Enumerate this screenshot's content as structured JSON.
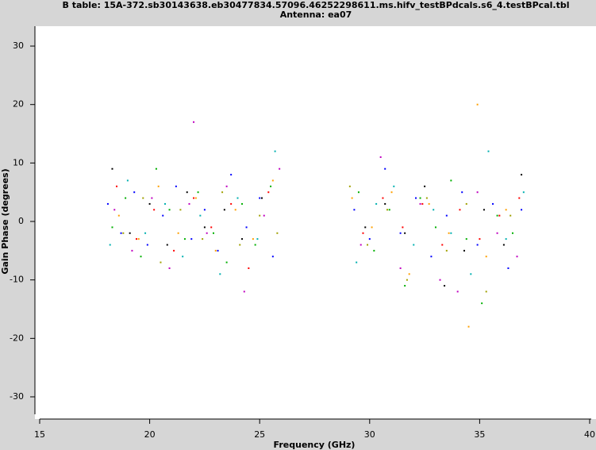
{
  "chart_data": {
    "type": "scatter",
    "title": "B table: 15A-372.sb30143638.eb30477834.57096.46252298611.ms.hifv_testBPdcals.s6_4.testBPcal.tbl",
    "subtitle": "Antenna: ea07",
    "xlabel": "Frequency (GHz)",
    "ylabel": "Gain Phase (degrees)",
    "xlim": [
      15,
      40
    ],
    "xticks": [
      15,
      20,
      25,
      30,
      35,
      40
    ],
    "ylim": [
      -33.8,
      33.4
    ],
    "yticks": [
      -30,
      -20,
      -10,
      0,
      10,
      20,
      30
    ],
    "series": [
      {
        "color": "#0000ff",
        "x": [
          18.1,
          18.7,
          19.3,
          19.9,
          20.6,
          21.2,
          21.9,
          22.5,
          23.1,
          23.7,
          24.4,
          25.0,
          25.6,
          29.3,
          30.0,
          30.7,
          31.4,
          32.1,
          32.8,
          33.5,
          34.2,
          34.9,
          35.6,
          36.3,
          36.9
        ],
        "values": [
          3,
          -2,
          5,
          -4,
          1,
          6,
          -3,
          2,
          -5,
          8,
          -1,
          4,
          -6,
          2,
          -3,
          9,
          -2,
          4,
          -6,
          1,
          5,
          -4,
          3,
          -8,
          2
        ]
      },
      {
        "color": "#00b000",
        "x": [
          18.3,
          18.9,
          19.6,
          20.3,
          20.9,
          21.6,
          22.2,
          22.9,
          23.5,
          24.2,
          24.8,
          25.5,
          29.5,
          30.2,
          30.9,
          31.6,
          32.3,
          33.0,
          33.7,
          34.4,
          35.1,
          35.8,
          36.5
        ],
        "values": [
          -1,
          4,
          -6,
          9,
          2,
          -3,
          5,
          -2,
          -7,
          3,
          -4,
          6,
          5,
          -5,
          2,
          -11,
          4,
          -1,
          7,
          -3,
          -14,
          1,
          -2
        ]
      },
      {
        "color": "#ff0000",
        "x": [
          18.5,
          19.4,
          20.2,
          21.1,
          22.0,
          22.8,
          23.7,
          24.5,
          25.4,
          29.7,
          30.6,
          31.5,
          32.4,
          33.3,
          34.1,
          35.0,
          35.9,
          36.8
        ],
        "values": [
          6,
          -3,
          2,
          -5,
          4,
          -1,
          3,
          -8,
          5,
          -2,
          4,
          -1,
          3,
          -4,
          2,
          -3,
          1,
          4
        ]
      },
      {
        "color": "#00b0b0",
        "x": [
          18.2,
          19.0,
          19.8,
          20.7,
          21.5,
          22.3,
          23.2,
          24.0,
          24.9,
          25.7,
          29.4,
          30.3,
          31.1,
          32.0,
          32.9,
          33.7,
          34.6,
          35.4,
          36.2,
          37.0
        ],
        "values": [
          -4,
          7,
          -2,
          3,
          -6,
          1,
          -9,
          4,
          -3,
          12,
          -7,
          3,
          6,
          -4,
          2,
          -2,
          -9,
          12,
          -3,
          5
        ]
      },
      {
        "color": "#c000c0",
        "x": [
          18.4,
          19.2,
          20.1,
          20.9,
          21.8,
          22.0,
          22.6,
          23.5,
          24.3,
          25.2,
          25.9,
          29.6,
          30.5,
          31.4,
          32.3,
          33.2,
          34.0,
          34.9,
          35.8,
          36.7
        ],
        "values": [
          2,
          -5,
          4,
          -8,
          3,
          17,
          -2,
          6,
          -12,
          1,
          9,
          -4,
          11,
          -8,
          3,
          -10,
          -12,
          5,
          -2,
          -6
        ]
      },
      {
        "color": "#ffa000",
        "x": [
          18.6,
          19.5,
          20.4,
          21.3,
          22.1,
          23.0,
          23.9,
          24.7,
          25.6,
          29.2,
          30.1,
          31.0,
          31.8,
          32.7,
          33.6,
          34.5,
          34.9,
          35.3,
          36.2
        ],
        "values": [
          1,
          -3,
          6,
          -2,
          4,
          -5,
          2,
          -3,
          7,
          4,
          -1,
          5,
          -9,
          3,
          -2,
          -18,
          20,
          -6,
          2
        ]
      },
      {
        "color": "#000000",
        "x": [
          18.3,
          19.1,
          20.0,
          20.8,
          21.7,
          22.5,
          23.4,
          24.2,
          25.1,
          29.8,
          30.7,
          31.6,
          32.5,
          33.4,
          34.3,
          35.2,
          36.1,
          36.9
        ],
        "values": [
          9,
          -2,
          3,
          -4,
          5,
          -1,
          2,
          -3,
          4,
          -1,
          3,
          -2,
          6,
          -11,
          -5,
          2,
          -4,
          8
        ]
      },
      {
        "color": "#a0a000",
        "x": [
          18.8,
          19.7,
          20.5,
          21.4,
          22.4,
          23.3,
          24.1,
          25.0,
          25.8,
          29.1,
          29.9,
          30.8,
          31.7,
          32.6,
          33.5,
          34.4,
          35.3,
          36.4
        ],
        "values": [
          -2,
          4,
          -7,
          2,
          -3,
          5,
          -4,
          1,
          -2,
          6,
          -4,
          2,
          -10,
          4,
          -5,
          3,
          -12,
          1
        ]
      }
    ]
  }
}
